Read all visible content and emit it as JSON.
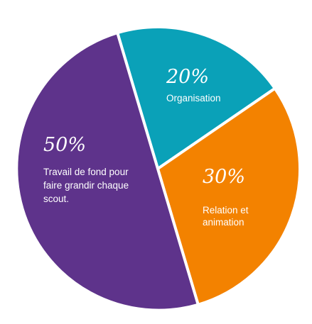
{
  "chart_data": {
    "type": "pie",
    "title": "",
    "slices": [
      {
        "value": 20,
        "pct_label": "20%",
        "label_lines": [
          "Organisation"
        ],
        "color": "#0AA1B8"
      },
      {
        "value": 30,
        "pct_label": "30%",
        "label_lines": [
          "Relation et",
          "animation"
        ],
        "color": "#F38200"
      },
      {
        "value": 50,
        "pct_label": "50%",
        "label_lines": [
          "Travail de fond pour",
          "faire grandir chaque",
          "scout."
        ],
        "color": "#5E338B"
      }
    ],
    "separator_color": "#ffffff"
  }
}
